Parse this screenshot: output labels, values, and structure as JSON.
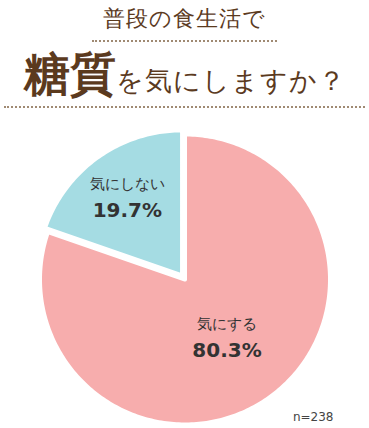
{
  "chart_data": {
    "type": "pie",
    "title": "普段の食生活で\n糖質を気にしますか？",
    "categories": [
      "気にする",
      "気にしない"
    ],
    "values": [
      80.3,
      19.7
    ],
    "value_labels": [
      "80.3%",
      "19.7%"
    ],
    "colors": [
      "#f7adad",
      "#a5dce3"
    ],
    "data_labels": true,
    "annotations": [
      "n=238"
    ]
  }
}
